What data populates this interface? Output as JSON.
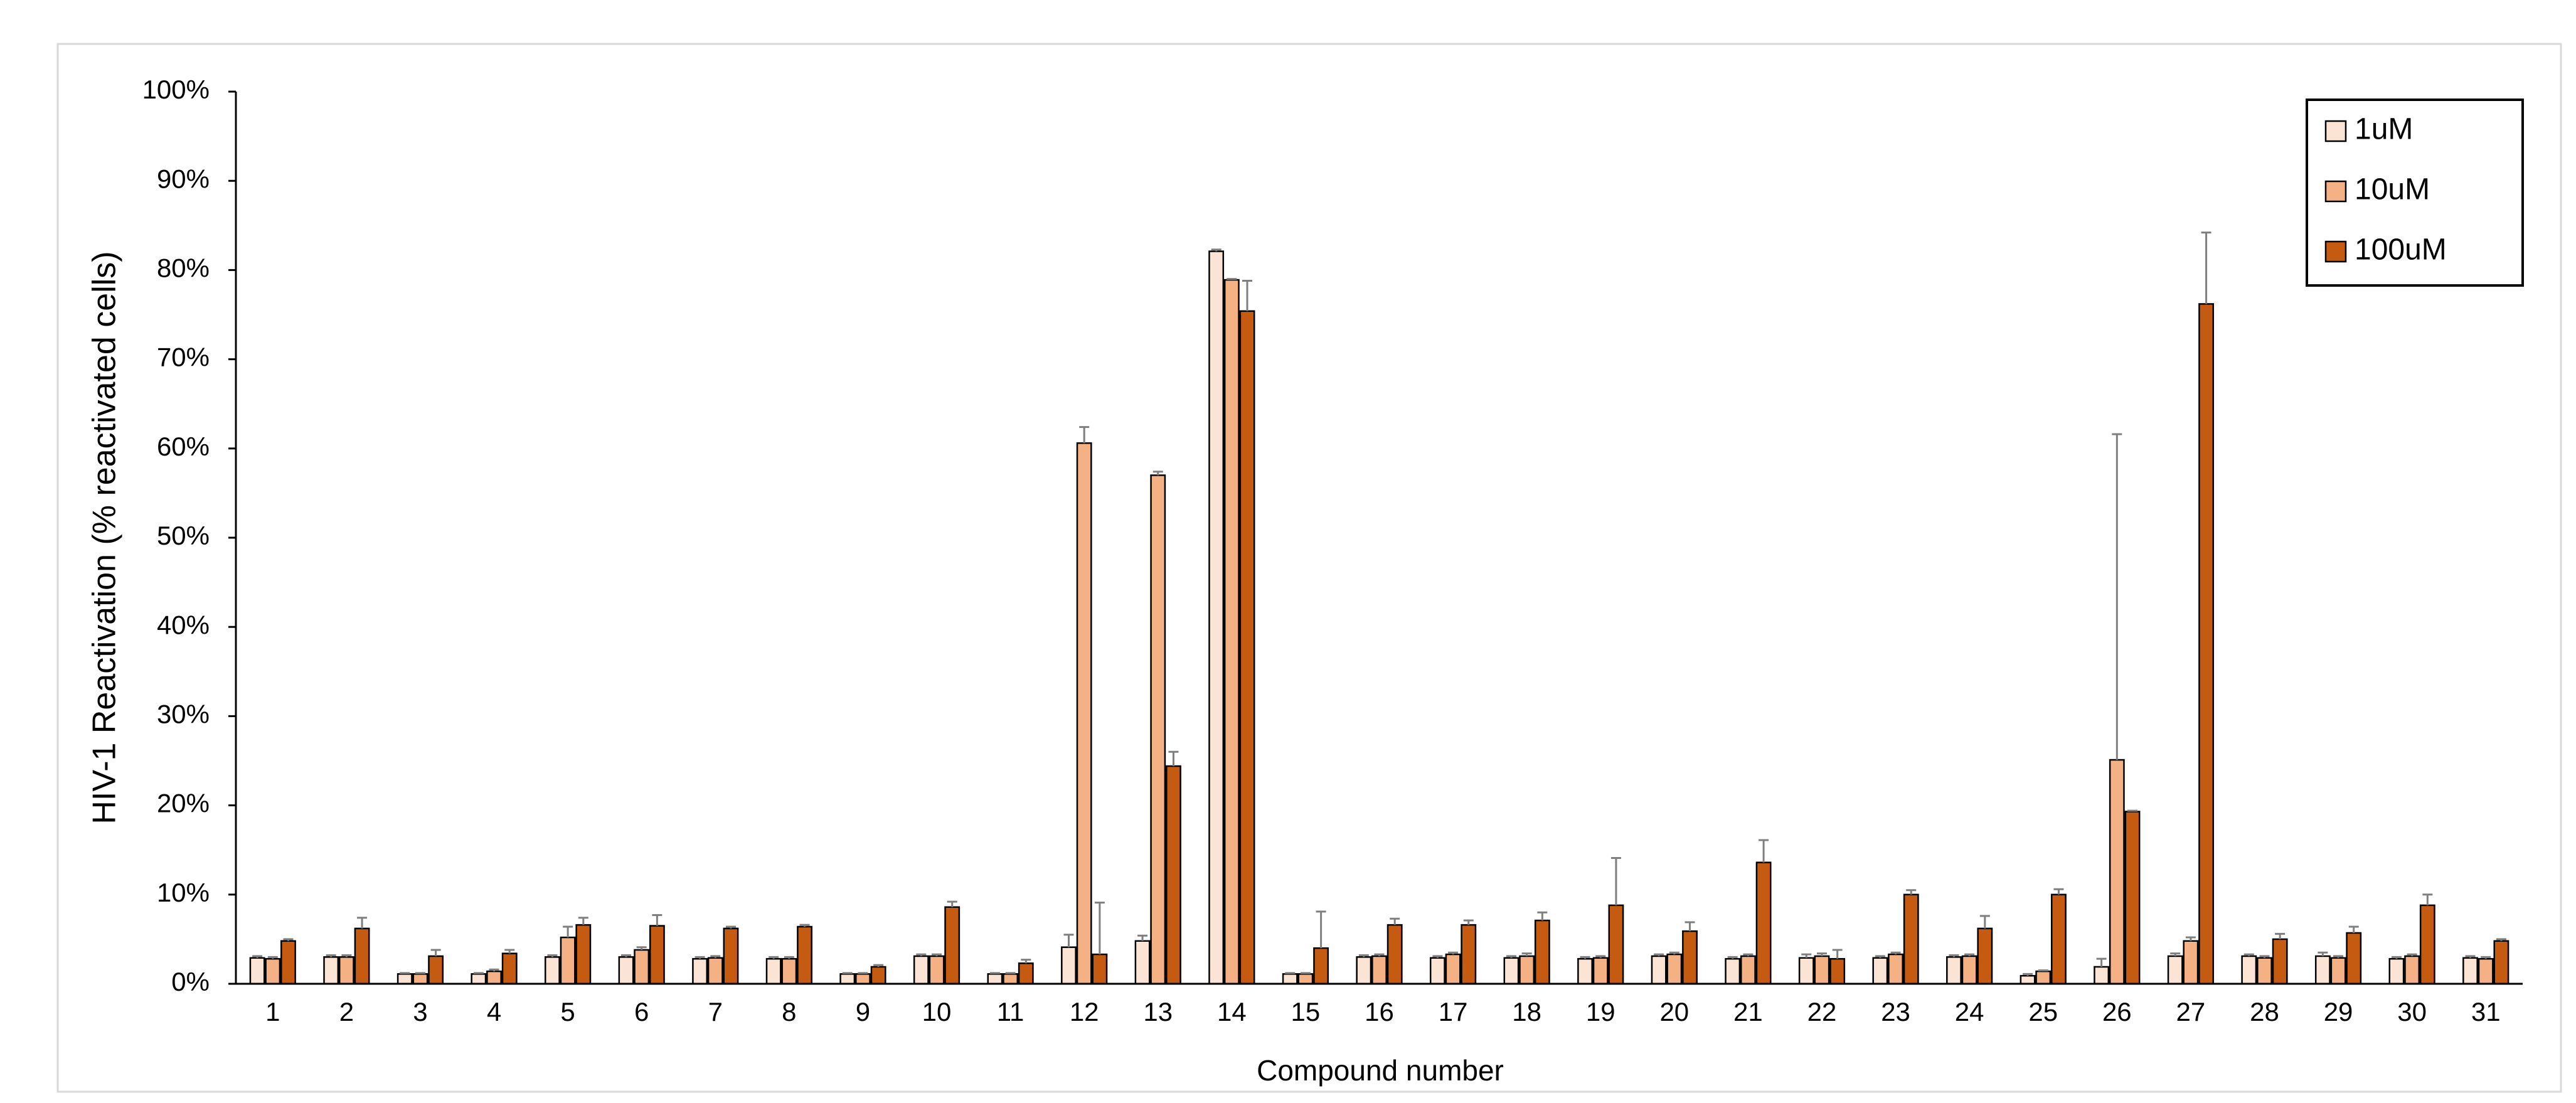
{
  "chart_data": {
    "type": "bar",
    "y_label": "HIV-1 Reactivation (% reactivated cells)",
    "x_label": "Compound number",
    "categories": [
      "1",
      "2",
      "3",
      "4",
      "5",
      "6",
      "7",
      "8",
      "9",
      "10",
      "11",
      "12",
      "13",
      "14",
      "15",
      "16",
      "17",
      "18",
      "19",
      "20",
      "21",
      "22",
      "23",
      "24",
      "25",
      "26",
      "27",
      "28",
      "29",
      "30",
      "31"
    ],
    "series": [
      {
        "name": "1uM",
        "color": "#fce4d4",
        "values": [
          2.9,
          3.0,
          1.1,
          1.1,
          3.0,
          3.0,
          2.8,
          2.8,
          1.1,
          3.1,
          1.1,
          4.1,
          4.8,
          82.1,
          1.1,
          3.0,
          2.9,
          2.9,
          2.8,
          3.1,
          2.8,
          2.9,
          2.9,
          3.0,
          0.9,
          1.9,
          3.1,
          3.1,
          3.1,
          2.8,
          2.9
        ],
        "errors": [
          0.2,
          0.2,
          0.1,
          0.1,
          0.2,
          0.2,
          0.2,
          0.2,
          0.1,
          0.2,
          0.1,
          1.4,
          0.6,
          0.2,
          0.1,
          0.2,
          0.2,
          0.2,
          0.2,
          0.2,
          0.2,
          0.4,
          0.2,
          0.2,
          0.2,
          0.9,
          0.3,
          0.2,
          0.4,
          0.2,
          0.2
        ]
      },
      {
        "name": "10uM",
        "color": "#f4b183",
        "values": [
          2.8,
          3.0,
          1.1,
          1.4,
          5.2,
          3.8,
          2.9,
          2.8,
          1.1,
          3.1,
          1.1,
          60.6,
          57.0,
          78.9,
          1.1,
          3.1,
          3.3,
          3.1,
          2.9,
          3.3,
          3.1,
          3.1,
          3.3,
          3.1,
          1.4,
          25.1,
          4.8,
          2.9,
          2.9,
          3.1,
          2.8
        ],
        "errors": [
          0.2,
          0.2,
          0.1,
          0.2,
          1.2,
          0.3,
          0.2,
          0.2,
          0.1,
          0.2,
          0.1,
          1.8,
          0.4,
          0.1,
          0.1,
          0.2,
          0.2,
          0.3,
          0.2,
          0.2,
          0.2,
          0.3,
          0.2,
          0.2,
          0.1,
          36.5,
          0.4,
          0.2,
          0.2,
          0.2,
          0.2
        ]
      },
      {
        "name": "100uM",
        "color": "#c55a11",
        "values": [
          4.8,
          6.2,
          3.1,
          3.4,
          6.6,
          6.5,
          6.2,
          6.4,
          1.9,
          8.6,
          2.3,
          3.3,
          24.4,
          75.4,
          4.0,
          6.6,
          6.6,
          7.1,
          8.8,
          5.9,
          13.6,
          2.8,
          10.0,
          6.2,
          10.0,
          19.3,
          76.2,
          5.0,
          5.7,
          8.8,
          4.8
        ],
        "errors": [
          0.2,
          1.2,
          0.7,
          0.4,
          0.8,
          1.2,
          0.2,
          0.2,
          0.2,
          0.6,
          0.4,
          5.8,
          1.6,
          3.4,
          4.1,
          0.7,
          0.5,
          0.9,
          5.3,
          1.0,
          2.5,
          1.0,
          0.5,
          1.4,
          0.6,
          0.1,
          8.0,
          0.6,
          0.7,
          1.2,
          0.2
        ]
      }
    ],
    "ylim": [
      0,
      100
    ],
    "yticks": [
      {
        "value": 0,
        "label": "0%"
      },
      {
        "value": 10,
        "label": "10%"
      },
      {
        "value": 20,
        "label": "20%"
      },
      {
        "value": 30,
        "label": "30%"
      },
      {
        "value": 40,
        "label": "40%"
      },
      {
        "value": 50,
        "label": "50%"
      },
      {
        "value": 60,
        "label": "60%"
      },
      {
        "value": 70,
        "label": "70%"
      },
      {
        "value": 80,
        "label": "80%"
      },
      {
        "value": 90,
        "label": "90%"
      },
      {
        "value": 100,
        "label": "100%"
      }
    ],
    "grid": false,
    "legend": "upper right"
  }
}
